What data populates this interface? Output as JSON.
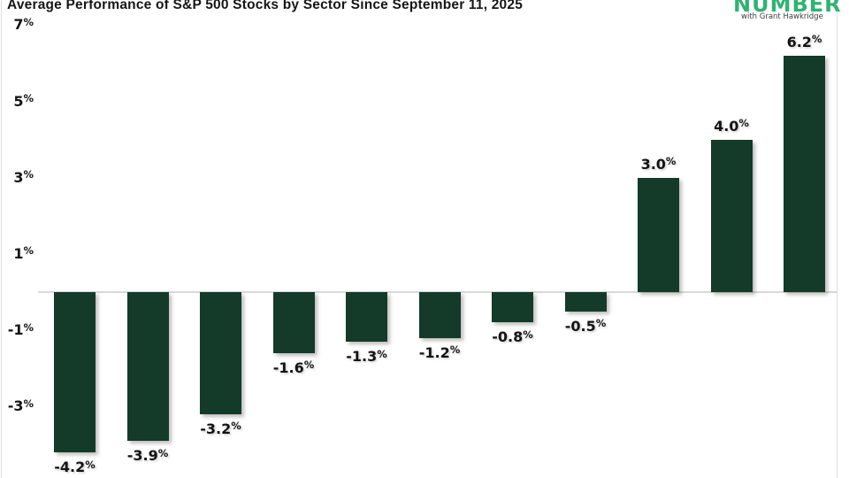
{
  "header": {
    "logo": {
      "brand": "NUMBER",
      "tagline": "with Grant Hawkridge"
    }
  },
  "chart_data": {
    "type": "bar",
    "title": "Average Performance of S&P 500 Stocks by Sector Since September 11, 2025",
    "values": [
      -4.2,
      -3.9,
      -3.2,
      -1.6,
      -1.3,
      -1.2,
      -0.8,
      -0.5,
      3.0,
      4.0,
      6.2
    ],
    "bar_labels": [
      "-4.2%",
      "-3.9%",
      "-3.2%",
      "-1.6%",
      "-1.3%",
      "-1.2%",
      "-0.8%",
      "-0.5%",
      "3.0%",
      "4.0%",
      "6.2%"
    ],
    "y_ticks": [
      {
        "label": "7%",
        "value": 7
      },
      {
        "label": "5%",
        "value": 5
      },
      {
        "label": "3%",
        "value": 3
      },
      {
        "label": "1%",
        "value": 1
      },
      {
        "label": "-1%",
        "value": -1
      },
      {
        "label": "-3%",
        "value": -3
      }
    ],
    "ylim": [
      -5.0,
      7.3
    ],
    "xlabel": "",
    "ylabel": "",
    "grid": "zero-baseline-only",
    "legend": "none",
    "bar_color": "#143a2a"
  },
  "colors": {
    "bar": "#143a2a",
    "logo_green": "#2fb371",
    "baseline": "#d9d9d9",
    "title_text": "#161616",
    "tagline_text": "#3d3d3d"
  }
}
